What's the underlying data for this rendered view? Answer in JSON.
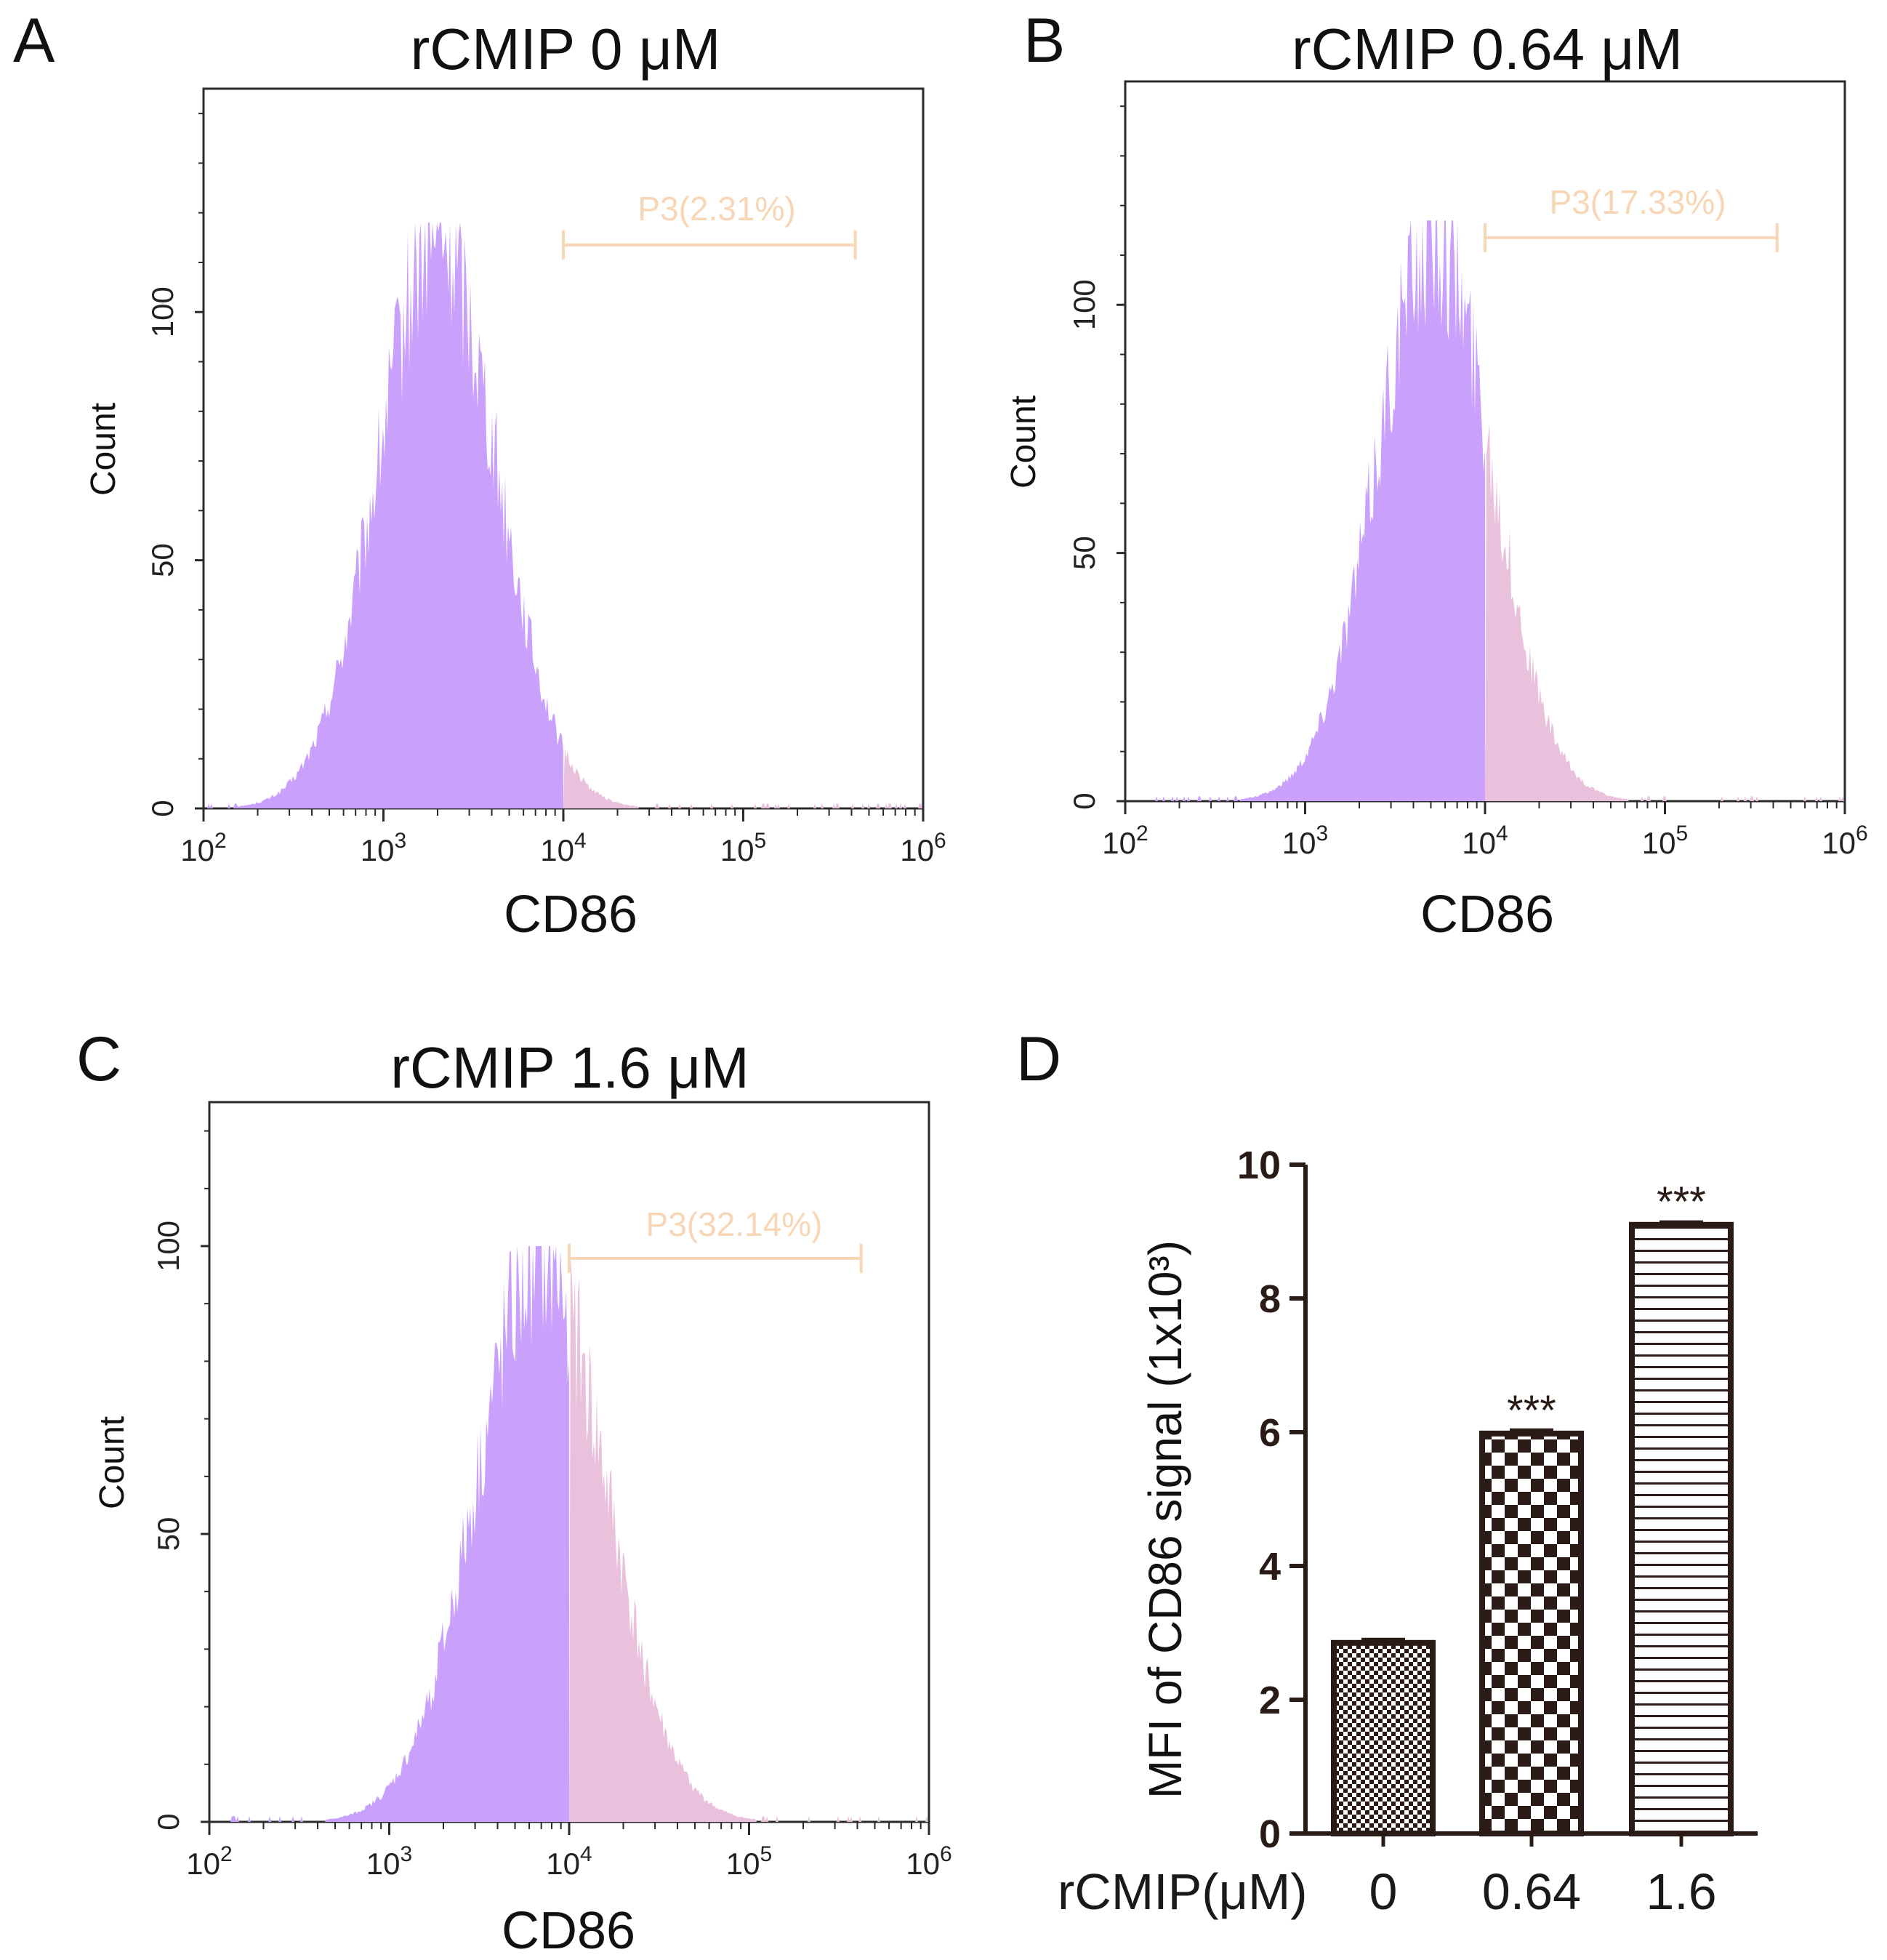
{
  "chart_data": [
    {
      "panel": "A",
      "type": "histogram",
      "title": "rCMIP 0 μM",
      "xlabel": "CD86",
      "ylabel": "Count",
      "x_scale": "log",
      "xlim": [
        100,
        1000000
      ],
      "ylim": [
        0,
        145
      ],
      "x_ticks": [
        100,
        1000,
        10000,
        100000,
        1000000
      ],
      "y_ticks": [
        0,
        50,
        100
      ],
      "y_tick_labels": [
        "0",
        "50",
        "100"
      ],
      "gate": {
        "name": "P3",
        "label": "P3(2.31%)",
        "percent": 2.31,
        "start": 10000,
        "end": 420000
      },
      "distribution": {
        "center": 2000,
        "log_sigma": 0.33,
        "peak_count": 118
      },
      "colors": {
        "main": "#c9a0fb",
        "gated": "#e9c1dd",
        "gate": "#f7d6b6"
      }
    },
    {
      "panel": "B",
      "type": "histogram",
      "title": "rCMIP 0.64 μM",
      "xlabel": "CD86",
      "ylabel": "Count",
      "x_scale": "log",
      "xlim": [
        100,
        1000000
      ],
      "ylim": [
        0,
        145
      ],
      "x_ticks": [
        100,
        1000,
        10000,
        100000,
        1000000
      ],
      "y_ticks": [
        0,
        50,
        100
      ],
      "y_tick_labels": [
        "0",
        "50",
        "100"
      ],
      "gate": {
        "name": "P3",
        "label": "P3(17.33%)",
        "percent": 17.33,
        "start": 10000,
        "end": 420000
      },
      "distribution": {
        "center": 5200,
        "log_sigma": 0.32,
        "peak_count": 117
      },
      "colors": {
        "main": "#c9a0fb",
        "gated": "#e9c1dd",
        "gate": "#f7d6b6"
      }
    },
    {
      "panel": "C",
      "type": "histogram",
      "title": "rCMIP 1.6 μM",
      "xlabel": "CD86",
      "ylabel": "Count",
      "x_scale": "log",
      "xlim": [
        100,
        1000000
      ],
      "ylim": [
        0,
        125
      ],
      "x_ticks": [
        100,
        1000,
        10000,
        100000,
        1000000
      ],
      "y_ticks": [
        0,
        50,
        100
      ],
      "y_tick_labels": [
        "0",
        "50",
        "100"
      ],
      "gate": {
        "name": "P3",
        "label": "P3(32.14%)",
        "percent": 32.14,
        "start": 10000,
        "end": 420000
      },
      "distribution": {
        "center": 7000,
        "log_sigma": 0.36,
        "peak_count": 100
      },
      "colors": {
        "main": "#c9a0fb",
        "gated": "#e9c1dd",
        "gate": "#f7d6b6"
      }
    },
    {
      "panel": "D",
      "type": "bar",
      "title": "",
      "xlabel": "rCMIP(μM)",
      "ylabel": "MFI of CD86 signal (1x10³)",
      "categories": [
        "0",
        "0.64",
        "1.6"
      ],
      "values": [
        2.85,
        5.98,
        9.1
      ],
      "errors": [
        0.05,
        0.05,
        0.04
      ],
      "significance": [
        "",
        "***",
        "***"
      ],
      "patterns": [
        "dots",
        "checker",
        "hlines"
      ],
      "ylim": [
        0,
        10
      ],
      "y_ticks": [
        0,
        2,
        4,
        6,
        8,
        10
      ],
      "y_tick_labels": [
        "0",
        "2",
        "4",
        "6",
        "8",
        "10"
      ],
      "colors": {
        "axis": "#2b1b16",
        "bar_edge": "#2b1b16"
      }
    }
  ]
}
